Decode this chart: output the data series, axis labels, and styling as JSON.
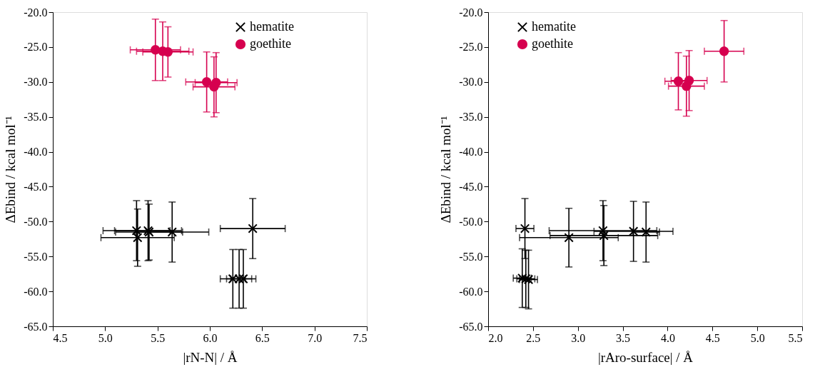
{
  "chart_data": [
    {
      "type": "scatter",
      "xlabel": "|rN-N| / Å",
      "ylabel": "ΔEbind / kcal mol⁻¹",
      "legend": "top right",
      "grid": false,
      "xlim": [
        4.5,
        7.5
      ],
      "ylim": [
        -65,
        -20
      ],
      "xticks": [
        {
          "value": 4.5,
          "label": "4.5"
        },
        {
          "value": 5,
          "label": "5.0"
        },
        {
          "value": 5.5,
          "label": "5.5"
        },
        {
          "value": 6,
          "label": "6.0"
        },
        {
          "value": 6.5,
          "label": "6.5"
        },
        {
          "value": 7,
          "label": "7.0"
        },
        {
          "value": 7.5,
          "label": "7.5"
        }
      ],
      "yticks": [
        {
          "value": -20,
          "label": "-20.0"
        },
        {
          "value": -25,
          "label": "-25.0"
        },
        {
          "value": -30,
          "label": "-30.0"
        },
        {
          "value": -35,
          "label": "-35.0"
        },
        {
          "value": -40,
          "label": "-40.0"
        },
        {
          "value": -45,
          "label": "-45.0"
        },
        {
          "value": -50,
          "label": "-50.0"
        },
        {
          "value": -55,
          "label": "-55.0"
        },
        {
          "value": -60,
          "label": "-60.0"
        },
        {
          "value": -65,
          "label": "-65.0"
        }
      ],
      "series": [
        {
          "name": "hematite",
          "color": "#000000",
          "marker": "cross",
          "x": [
            5.3,
            5.31,
            5.41,
            5.42,
            5.64,
            6.41,
            6.22,
            6.28,
            6.32
          ],
          "values": [
            -51.3,
            -52.3,
            -51.3,
            -51.5,
            -51.5,
            -51,
            -58.2,
            -58.2,
            -58.2
          ],
          "errors": [
            4.3,
            4.1,
            4.3,
            4,
            4.3,
            4.3,
            4.2,
            4.2,
            4.2
          ],
          "xerrors": [
            0.32,
            0.35,
            0.32,
            0.32,
            0.35,
            0.31,
            0.12,
            0.12,
            0.12
          ]
        },
        {
          "name": "goethite",
          "color": "#d6004f",
          "marker": "circle",
          "x": [
            5.48,
            5.55,
            5.6,
            5.97,
            6.04,
            6.06
          ],
          "values": [
            -25.4,
            -25.6,
            -25.7,
            -30,
            -30.7,
            -30.1
          ],
          "errors": [
            4.4,
            4.2,
            3.6,
            4.3,
            4.3,
            4.3
          ],
          "xerrors": [
            0.24,
            0.25,
            0.24,
            0.2,
            0.2,
            0.2
          ]
        }
      ]
    },
    {
      "type": "scatter",
      "xlabel": "|rAro-surface| / Å",
      "ylabel": "ΔEbind / kcal mol⁻¹",
      "legend": "top left",
      "grid": false,
      "xlim": [
        2,
        5.5
      ],
      "ylim": [
        -65,
        -20
      ],
      "xticks": [
        {
          "value": 2,
          "label": "2.0"
        },
        {
          "value": 2.5,
          "label": "2.5"
        },
        {
          "value": 3,
          "label": "3.0"
        },
        {
          "value": 3.5,
          "label": "3.5"
        },
        {
          "value": 4,
          "label": "4.0"
        },
        {
          "value": 4.5,
          "label": "4.5"
        },
        {
          "value": 5,
          "label": "5.0"
        },
        {
          "value": 5.5,
          "label": "5.5"
        }
      ],
      "yticks": [
        {
          "value": -20,
          "label": "-20.0"
        },
        {
          "value": -25,
          "label": "-25.0"
        },
        {
          "value": -30,
          "label": "-30.0"
        },
        {
          "value": -35,
          "label": "-35.0"
        },
        {
          "value": -40,
          "label": "-40.0"
        },
        {
          "value": -45,
          "label": "-45.0"
        },
        {
          "value": -50,
          "label": "-50.0"
        },
        {
          "value": -55,
          "label": "-55.0"
        },
        {
          "value": -60,
          "label": "-60.0"
        },
        {
          "value": -65,
          "label": "-65.0"
        }
      ],
      "series": [
        {
          "name": "hematite",
          "color": "#000000",
          "marker": "cross",
          "x": [
            2.41,
            2.9,
            3.28,
            3.29,
            3.62,
            3.76,
            2.38,
            2.42,
            2.45
          ],
          "values": [
            -51,
            -52.3,
            -51.3,
            -52,
            -51.4,
            -51.5,
            -58.1,
            -58.2,
            -58.3
          ],
          "errors": [
            4.3,
            4.2,
            4.3,
            4.3,
            4.3,
            4.3,
            4.2,
            4.1,
            4.2
          ],
          "xerrors": [
            0.1,
            0.55,
            0.6,
            0.6,
            0.44,
            0.15,
            0.1,
            0.1,
            0.1
          ]
        },
        {
          "name": "goethite",
          "color": "#d6004f",
          "marker": "circle",
          "x": [
            4.63,
            4.12,
            4.24,
            4.21
          ],
          "values": [
            -25.6,
            -29.9,
            -29.8,
            -30.6
          ],
          "errors": [
            4.4,
            4.1,
            4.3,
            4.3
          ],
          "xerrors": [
            0.22,
            0.15,
            0.2,
            0.2
          ]
        }
      ]
    }
  ]
}
